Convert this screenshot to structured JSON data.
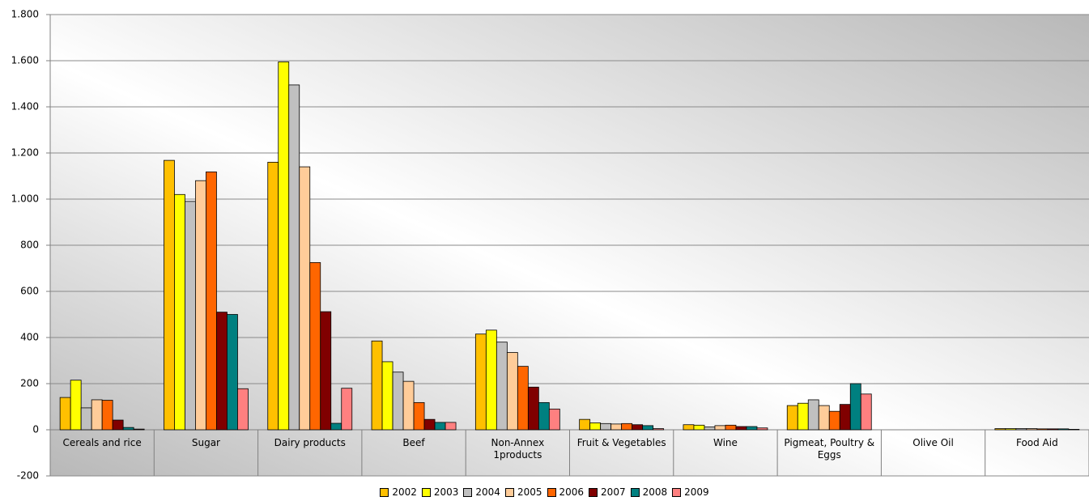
{
  "chart_data": {
    "type": "bar",
    "categories": [
      "Cereals and rice",
      "Sugar",
      "Dairy products",
      "Beef",
      "Non-Annex 1products",
      "Fruit & Vegetables",
      "Wine",
      "Pigmeat, Poultry & Eggs",
      "Olive Oil",
      "Food Aid"
    ],
    "series": [
      {
        "name": "2002",
        "color": "#ffc000",
        "values": [
          140,
          1168,
          1160,
          385,
          415,
          45,
          22,
          105,
          0,
          5
        ]
      },
      {
        "name": "2003",
        "color": "#ffff00",
        "values": [
          215,
          1020,
          1595,
          295,
          432,
          30,
          20,
          115,
          0,
          5
        ]
      },
      {
        "name": "2004",
        "color": "#c0c0c0",
        "values": [
          95,
          990,
          1495,
          250,
          380,
          27,
          12,
          130,
          0,
          5
        ]
      },
      {
        "name": "2005",
        "color": "#ffcc99",
        "values": [
          130,
          1080,
          1140,
          210,
          335,
          25,
          18,
          105,
          0,
          5
        ]
      },
      {
        "name": "2006",
        "color": "#ff6600",
        "values": [
          128,
          1118,
          725,
          118,
          275,
          27,
          20,
          80,
          0,
          4
        ]
      },
      {
        "name": "2007",
        "color": "#800000",
        "values": [
          42,
          510,
          512,
          45,
          185,
          22,
          14,
          110,
          0,
          4
        ]
      },
      {
        "name": "2008",
        "color": "#008080",
        "values": [
          10,
          500,
          28,
          32,
          118,
          18,
          14,
          200,
          0,
          4
        ]
      },
      {
        "name": "2009",
        "color": "#ff8080",
        "values": [
          3,
          178,
          180,
          32,
          90,
          5,
          8,
          155,
          0,
          2
        ]
      }
    ],
    "ylim": [
      -200,
      1800
    ],
    "yticks": [
      -200,
      0,
      200,
      400,
      600,
      800,
      {
        "value": 1000,
        "label": "1.000"
      },
      {
        "value": 1200,
        "label": "1.200"
      },
      {
        "value": 1400,
        "label": "1.400"
      },
      {
        "value": 1600,
        "label": "1.600"
      },
      {
        "value": 1800,
        "label": "1.800"
      }
    ],
    "grid": true,
    "legend": "bottom"
  }
}
